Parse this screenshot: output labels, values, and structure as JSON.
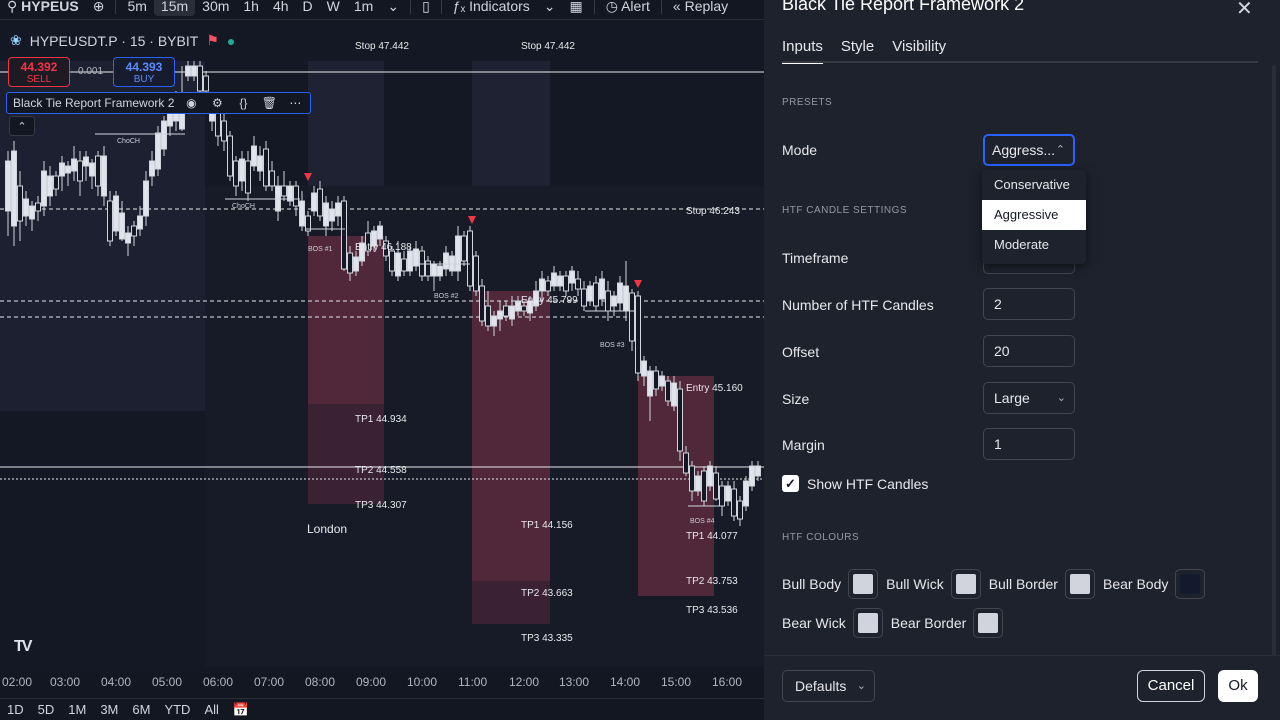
{
  "toolbar": {
    "symbol": "HYPEUS",
    "intervals": [
      "5m",
      "15m",
      "30m",
      "1h",
      "4h",
      "D",
      "W",
      "1m"
    ],
    "active_interval": "15m",
    "indicators_label": "Indicators",
    "alert_label": "Alert",
    "replay_label": "Replay"
  },
  "chart": {
    "symbol_line": "HYPEUSDT.P · 15 · BYBIT",
    "sell_price": "44.392",
    "sell_label": "SELL",
    "buy_price": "44.393",
    "buy_label": "BUY",
    "spread": "0.001",
    "indicator_name": "Black Tie Report Framework 2",
    "session_label": "London",
    "structure_labels": [
      "ChoCH",
      "ChoCH",
      "BOS #1",
      "BOS #2",
      "BOS #3",
      "BOS #4"
    ],
    "trade_labels": {
      "stop1": "Stop  47.442",
      "stop2": "Stop  47.442",
      "stop3": "Stop  46.243",
      "entry1": "Entry 46.188",
      "entry2": "Entry 45.799",
      "entry3": "Entry 45.160",
      "tp1a": "TP1   44.934",
      "tp2a": "TP2   44.558",
      "tp3a": "TP3   44.307",
      "tp1b": "TP1   44.156",
      "tp2b": "TP2   43.663",
      "tp3b": "TP3   43.335",
      "tp1c": "TP1   44.077",
      "tp2c": "TP2   43.753",
      "tp3c": "TP3   43.536"
    },
    "time_labels": [
      "02:00",
      "03:00",
      "04:00",
      "05:00",
      "06:00",
      "07:00",
      "08:00",
      "09:00",
      "10:00",
      "11:00",
      "12:00",
      "13:00",
      "14:00",
      "15:00",
      "16:00"
    ],
    "ranges": [
      "1D",
      "5D",
      "1M",
      "3M",
      "6M",
      "YTD",
      "All"
    ]
  },
  "dialog": {
    "title": "Black Tie Report Framework 2",
    "tabs": [
      "Inputs",
      "Style",
      "Visibility"
    ],
    "active_tab": "Inputs",
    "presets_section": "PRESETS",
    "mode_label": "Mode",
    "mode_value": "Aggress...",
    "mode_options": [
      "Conservative",
      "Aggressive",
      "Moderate"
    ],
    "mode_selected": "Aggressive",
    "htf_section": "HTF CANDLE SETTINGS",
    "timeframe_label": "Timeframe",
    "num_candles_label": "Number of HTF Candles",
    "num_candles_value": "2",
    "offset_label": "Offset",
    "offset_value": "20",
    "size_label": "Size",
    "size_value": "Large",
    "margin_label": "Margin",
    "margin_value": "1",
    "show_htf_label": "Show HTF Candles",
    "show_htf_checked": true,
    "colours_section": "HTF COLOURS",
    "colours": [
      {
        "label": "Bull Body",
        "color": "#d1d4dc"
      },
      {
        "label": "Bull Wick",
        "color": "#d1d4dc"
      },
      {
        "label": "Bull Border",
        "color": "#d1d4dc"
      },
      {
        "label": "Bear Body",
        "color": "#131a2e"
      },
      {
        "label": "Bear Wick",
        "color": "#d1d4dc"
      },
      {
        "label": "Bear Border",
        "color": "#d1d4dc"
      }
    ],
    "defaults_label": "Defaults",
    "cancel_label": "Cancel",
    "ok_label": "Ok"
  }
}
